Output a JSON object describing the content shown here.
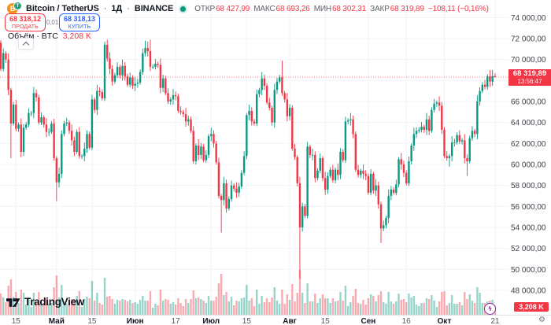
{
  "header": {
    "logo_base_glyph": "B",
    "logo_quote_glyph": "T",
    "name": "Bitcoin / TetherUS",
    "separator": "·",
    "interval": "1Д",
    "exchange": "BINANCE",
    "open_label": "ОТКР",
    "open_value": "68 427,99",
    "high_label": "МАКС",
    "high_value": "68 693,26",
    "low_label": "МИН",
    "low_value": "68 302,31",
    "close_label": "ЗАКР",
    "close_value": "68 319,89",
    "change": "−108,11 (−0,16%)"
  },
  "trade": {
    "sell_price": "68 318,12",
    "sell_label": "ПРОДАТЬ",
    "spread": "0,01",
    "buy_price": "68 318,13",
    "buy_label": "КУПИТЬ"
  },
  "legend": {
    "title": "Объём · BTC",
    "value": "3,208 K"
  },
  "watermark": {
    "text": "TradingView"
  },
  "price_badge": {
    "price": "68 319,89",
    "countdown": "13:56:47"
  },
  "volume_badge": {
    "value": "3,208 K"
  },
  "chart_data": {
    "type": "candlestick",
    "symbol": "Bitcoin / TetherUS",
    "interval": "1Д",
    "exchange": "BINANCE",
    "units": "USDT, thousands",
    "ohlc_today": {
      "open": 68427.99,
      "high": 68693.26,
      "low": 68302.31,
      "close": 68319.89,
      "change": -108.11,
      "change_pct": -0.16
    },
    "bid": 68318.12,
    "ask": 68318.13,
    "spread": 0.01,
    "volume_btc": "3,208 K",
    "first_open": 71.6,
    "closes": [
      69.1,
      70.6,
      70.0,
      67.1,
      63.9,
      65.7,
      63.4,
      63.8,
      61.2,
      63.5,
      63.8,
      64.9,
      64.9,
      66.8,
      66.4,
      64.0,
      64.5,
      63.8,
      63.1,
      63.1,
      63.9,
      60.6,
      58.3,
      59.1,
      62.9,
      63.9,
      64.0,
      63.2,
      62.3,
      61.2,
      63.1,
      60.8,
      60.8,
      61.5,
      62.9,
      61.6,
      66.2,
      65.2,
      67.0,
      66.9,
      66.3,
      71.4,
      70.1,
      69.1,
      67.9,
      68.5,
      69.3,
      68.5,
      69.4,
      68.4,
      67.6,
      68.3,
      67.5,
      67.7,
      67.8,
      68.8,
      70.6,
      71.1,
      70.8,
      69.3,
      69.3,
      69.6,
      69.5,
      67.3,
      68.2,
      66.8,
      66.0,
      66.2,
      66.6,
      66.5,
      65.1,
      65.0,
      64.8,
      64.1,
      64.3,
      63.2,
      60.3,
      61.8,
      60.9,
      61.7,
      60.4,
      60.9,
      62.7,
      62.9,
      62.0,
      60.2,
      57.0,
      56.6,
      58.2,
      55.8,
      56.7,
      58.0,
      57.7,
      57.3,
      57.9,
      59.2,
      60.8,
      64.7,
      65.1,
      64.1,
      63.9,
      66.7,
      67.1,
      68.2,
      67.5,
      65.9,
      65.4,
      64.0,
      67.1,
      67.9,
      68.3,
      66.8,
      66.2,
      64.6,
      65.4,
      61.5,
      60.7,
      58.2,
      54.0,
      56.0,
      55.1,
      61.7,
      60.9,
      60.9,
      58.7,
      59.4,
      60.6,
      58.7,
      57.6,
      58.9,
      59.5,
      58.5,
      59.5,
      59.0,
      61.2,
      60.4,
      64.1,
      64.2,
      64.3,
      62.9,
      59.5,
      59.0,
      59.4,
      59.1,
      58.9,
      57.3,
      59.1,
      57.5,
      58.0,
      56.2,
      53.9,
      54.2,
      54.9,
      57.0,
      57.6,
      57.3,
      58.1,
      60.5,
      60.0,
      59.2,
      58.2,
      60.3,
      61.8,
      62.9,
      63.2,
      63.3,
      63.6,
      63.3,
      64.3,
      63.2,
      65.2,
      65.8,
      65.9,
      65.6,
      63.3,
      60.8,
      60.6,
      60.8,
      62.1,
      62.1,
      62.8,
      62.2,
      62.3,
      60.6,
      60.3,
      62.5,
      63.2,
      62.9,
      66.0,
      67.0,
      67.6,
      67.4,
      68.4,
      67.9,
      68.43,
      68.32
    ],
    "wick_overrides": {
      "4": {
        "h": 67.3,
        "l": 60.6
      },
      "22": {
        "l": 56.5
      },
      "41": {
        "h": 71.7
      },
      "42": {
        "h": 71.9
      },
      "57": {
        "h": 71.8
      },
      "59": {
        "h": 71.9
      },
      "87": {
        "l": 53.5
      },
      "111": {
        "h": 69.9
      },
      "118": {
        "l": 49.1
      },
      "150": {
        "l": 52.5
      },
      "177": {
        "l": 59.8
      },
      "184": {
        "l": 58.9
      },
      "194": {
        "h": 69.0
      },
      "195": {
        "h": 68.69,
        "l": 68.3
      }
    },
    "wick_jitter_high": [
      0.25,
      0.45,
      0.2,
      0.6,
      0.35
    ],
    "wick_jitter_low": [
      0.3,
      0.2,
      0.5,
      0.25,
      0.4
    ],
    "volume_overrides": {
      "4": 45,
      "22": 50,
      "86": 40,
      "87": 52,
      "118": 57,
      "121": 40,
      "150": 30,
      "189": 28
    },
    "price_line": {
      "price": 68.32,
      "label": "68 319,89",
      "countdown": "13:56:47"
    },
    "y_axis": {
      "range_thousands": [
        48,
        74
      ],
      "ticks": [
        {
          "value": 74000,
          "label": "74 000,00"
        },
        {
          "value": 72000,
          "label": "72 000,00"
        },
        {
          "value": 70000,
          "label": "70 000,00"
        },
        {
          "value": 68000,
          "label": "68 000,00"
        },
        {
          "value": 66000,
          "label": "66 000,00"
        },
        {
          "value": 64000,
          "label": "64 000,00"
        },
        {
          "value": 62000,
          "label": "62 000,00"
        },
        {
          "value": 60000,
          "label": "60 000,00"
        },
        {
          "value": 58000,
          "label": "58 000,00"
        },
        {
          "value": 56000,
          "label": "56 000,00"
        },
        {
          "value": 54000,
          "label": "54 000,00"
        },
        {
          "value": 52000,
          "label": "52 000,00"
        },
        {
          "value": 50000,
          "label": "50 000,00"
        },
        {
          "value": 48000,
          "label": "48 000,00"
        }
      ]
    },
    "x_axis": {
      "ticks": [
        {
          "i": 6,
          "t": "15",
          "m": false
        },
        {
          "i": 22,
          "t": "Май",
          "m": true
        },
        {
          "i": 36,
          "t": "15",
          "m": false
        },
        {
          "i": 53,
          "t": "Июн",
          "m": true
        },
        {
          "i": 69,
          "t": "17",
          "m": false
        },
        {
          "i": 83,
          "t": "Июл",
          "m": true
        },
        {
          "i": 97,
          "t": "15",
          "m": false
        },
        {
          "i": 114,
          "t": "Авг",
          "m": true
        },
        {
          "i": 128,
          "t": "15",
          "m": false
        },
        {
          "i": 145,
          "t": "Сен",
          "m": true
        },
        {
          "i": 160,
          "t": "16",
          "m": false
        },
        {
          "i": 175,
          "t": "Окт",
          "m": true
        },
        {
          "i": 195,
          "t": "21",
          "m": false
        }
      ]
    },
    "colors": {
      "up": "#089981",
      "down": "#f23645",
      "grid": "#f0f3fa",
      "axis_text": "#3c3f49",
      "buy_accent": "#2962ff",
      "lightning": "#9c27b0"
    }
  }
}
